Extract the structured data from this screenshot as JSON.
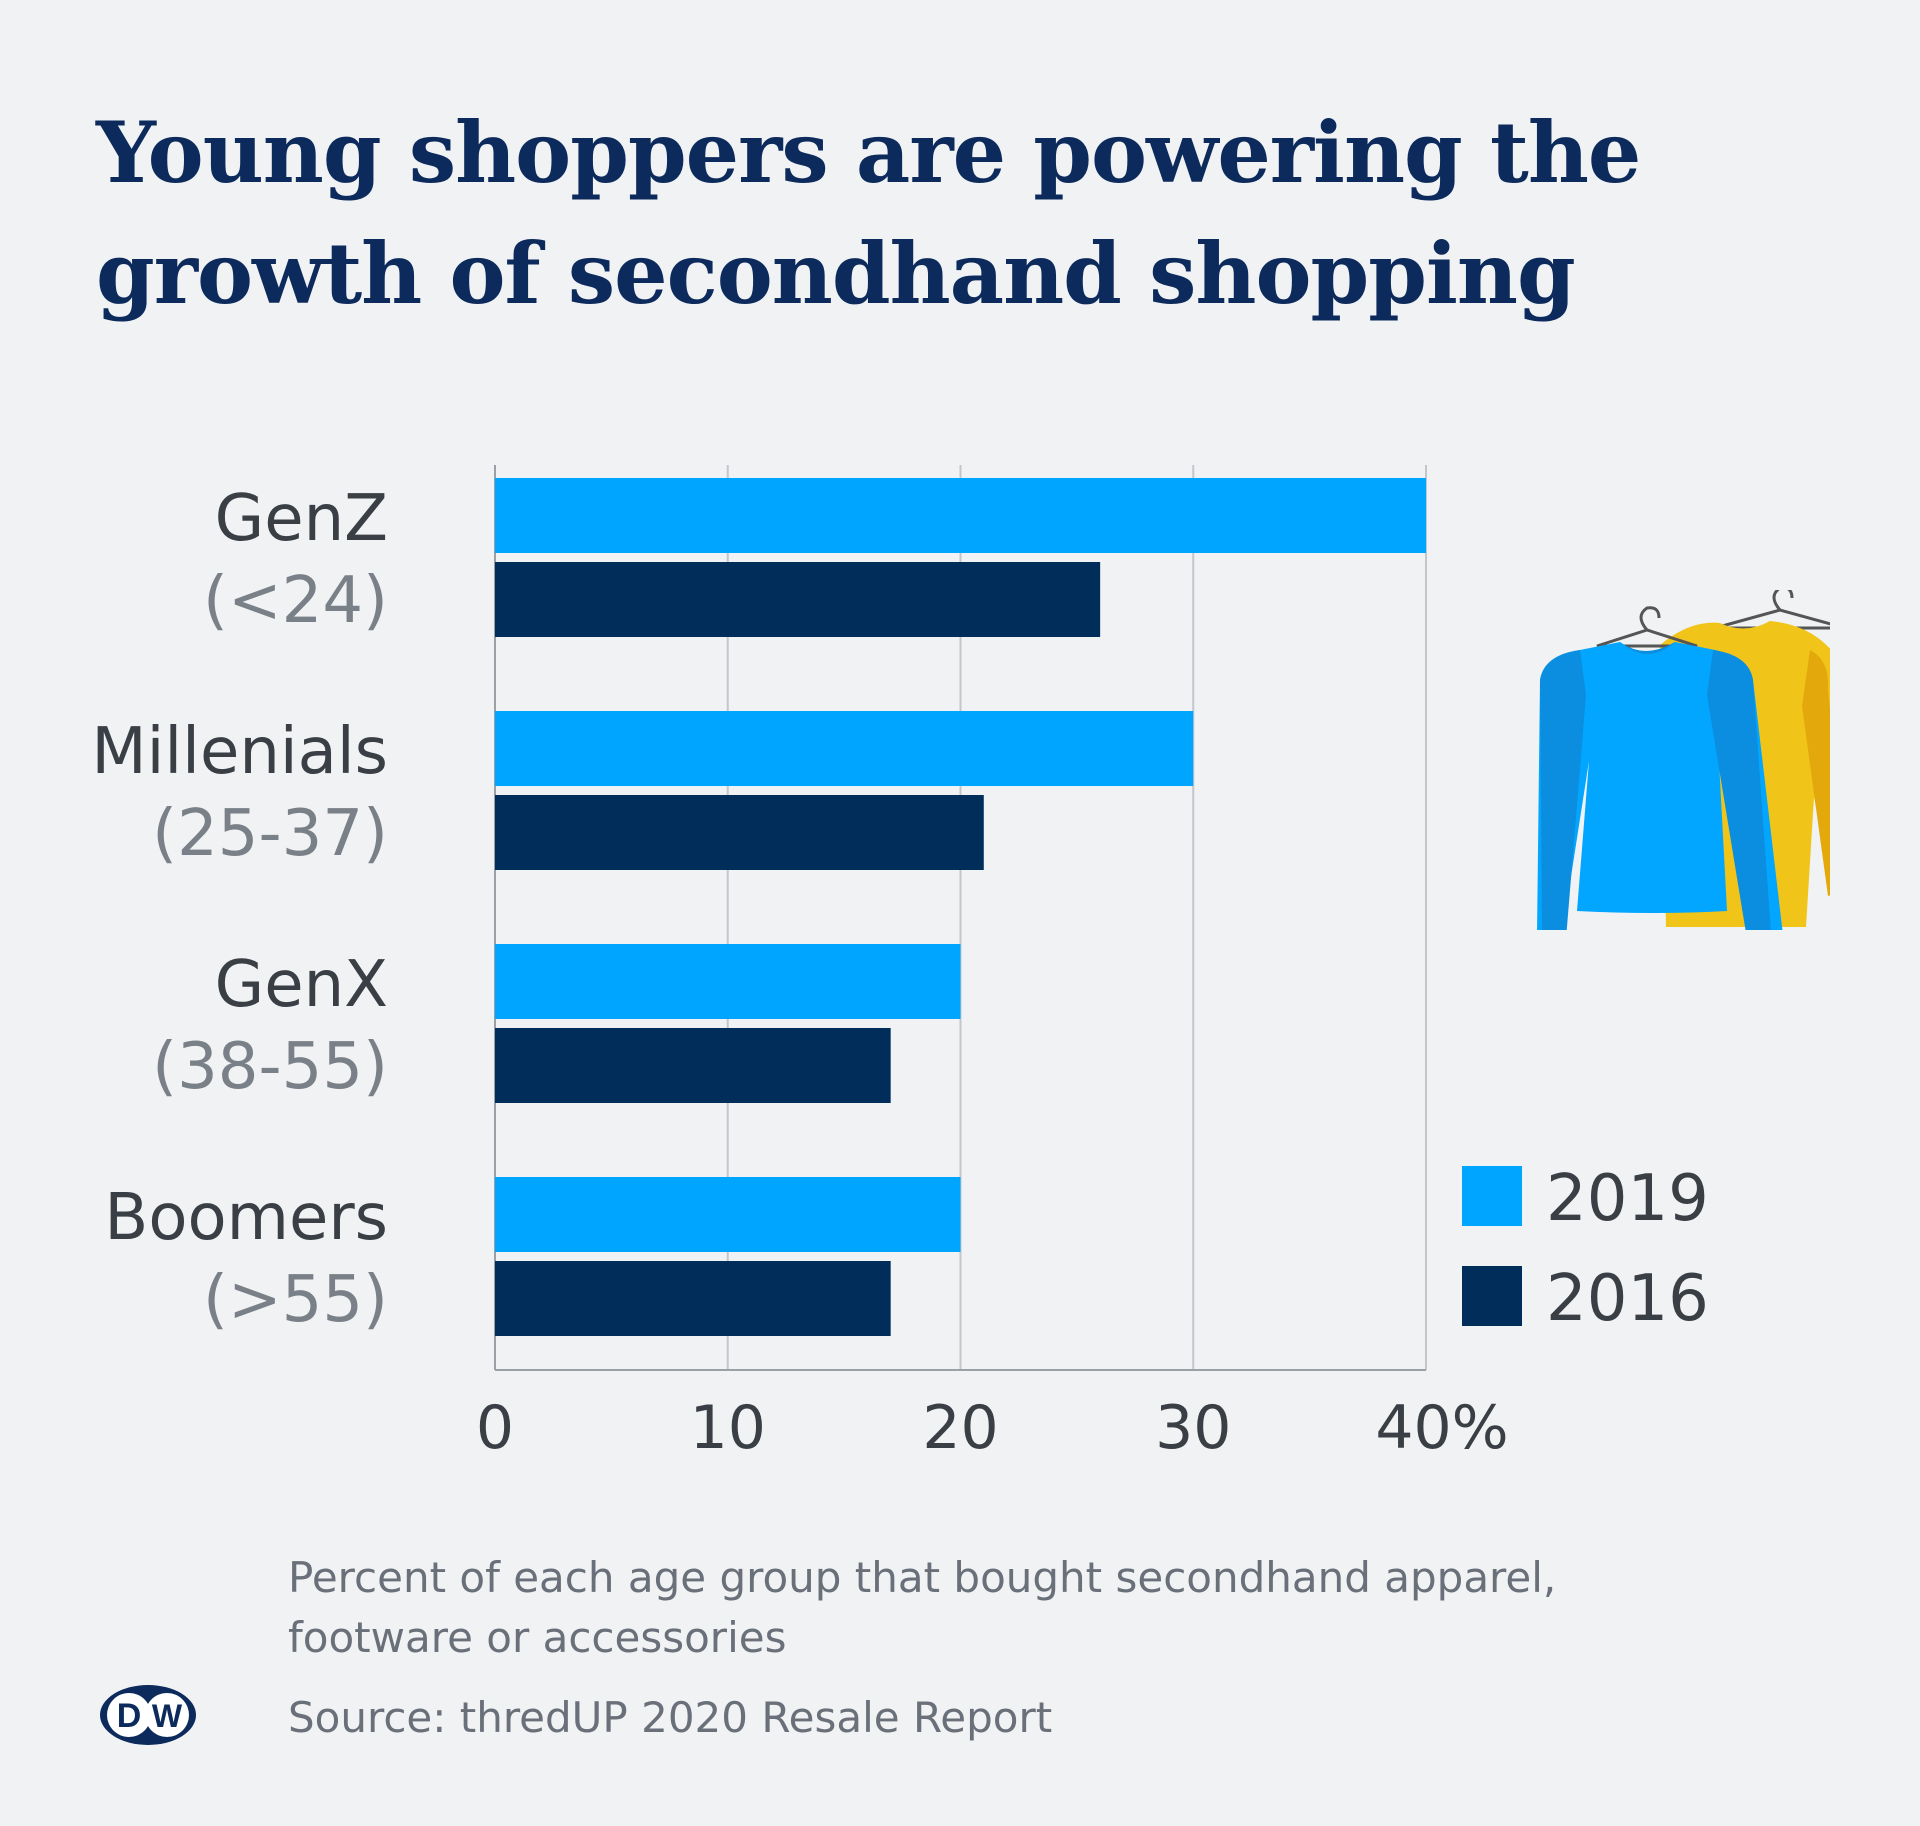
{
  "title": {
    "line1": "Young shoppers are powering the",
    "line2": "growth of secondhand shopping"
  },
  "chart_data": {
    "type": "bar",
    "orientation": "horizontal",
    "categories": [
      "GenZ",
      "Millenials",
      "GenX",
      "Boomers"
    ],
    "category_ranges": [
      "(<24)",
      "(25-37)",
      "(38-55)",
      "(>55)"
    ],
    "series": [
      {
        "name": "2019",
        "color": "#00a5ff",
        "values": [
          40,
          30,
          20,
          20
        ]
      },
      {
        "name": "2016",
        "color": "#002d5a",
        "values": [
          26,
          21,
          17,
          17
        ]
      }
    ],
    "xlim": [
      0,
      40
    ],
    "x_ticks": [
      "0",
      "10",
      "20",
      "30",
      "40%"
    ],
    "grid": true,
    "legend_position": "right"
  },
  "footnote": "Percent of each age group that bought secondhand apparel, footware or accessories",
  "source": "Source: thredUP 2020 Resale Report",
  "logo": {
    "text": "DW",
    "icon": "dw-logo"
  },
  "illustration": {
    "icon": "shirts-on-hangers-icon",
    "colors": [
      "#00a5ff",
      "#f5b800"
    ]
  }
}
